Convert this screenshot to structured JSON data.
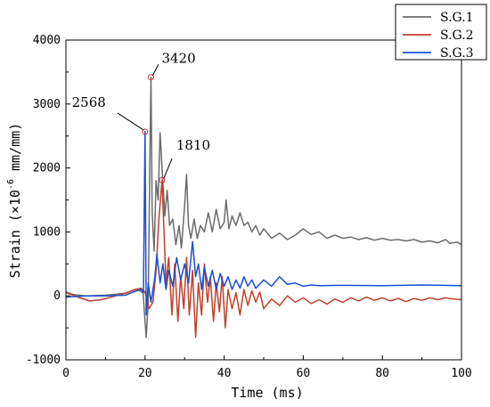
{
  "chart_data": {
    "type": "line",
    "xlabel": "Time (ms)",
    "ylabel_main": "Strain (×10",
    "ylabel_exp": "-6",
    "ylabel_unit": " mm/mm)",
    "xlim": [
      0,
      100
    ],
    "ylim": [
      -1000,
      4000
    ],
    "xticks": [
      "0",
      "20",
      "40",
      "60",
      "80",
      "100"
    ],
    "yticks": [
      "-1000",
      "0",
      "1000",
      "2000",
      "3000",
      "4000"
    ],
    "grid": false,
    "legend_position": "top-right",
    "series": [
      {
        "name": "S.G.1",
        "color": "#6b6b6b",
        "points": [
          [
            0,
            60
          ],
          [
            2,
            20
          ],
          [
            5,
            0
          ],
          [
            10,
            10
          ],
          [
            15,
            40
          ],
          [
            18,
            110
          ],
          [
            19.5,
            40
          ],
          [
            20.3,
            -650
          ],
          [
            20.8,
            -100
          ],
          [
            21.2,
            2000
          ],
          [
            21.5,
            3420
          ],
          [
            21.8,
            1300
          ],
          [
            22.3,
            700
          ],
          [
            22.8,
            1800
          ],
          [
            23.3,
            1500
          ],
          [
            23.8,
            2550
          ],
          [
            24.4,
            1900
          ],
          [
            25,
            1250
          ],
          [
            25.6,
            1650
          ],
          [
            26.2,
            1100
          ],
          [
            27,
            1200
          ],
          [
            27.8,
            800
          ],
          [
            28.6,
            1100
          ],
          [
            29.2,
            750
          ],
          [
            30,
            1400
          ],
          [
            30.5,
            1900
          ],
          [
            31,
            1100
          ],
          [
            31.6,
            900
          ],
          [
            32.4,
            1200
          ],
          [
            33.2,
            900
          ],
          [
            34,
            1100
          ],
          [
            35,
            1000
          ],
          [
            36,
            1300
          ],
          [
            37,
            1000
          ],
          [
            38,
            1350
          ],
          [
            39,
            1050
          ],
          [
            40,
            1150
          ],
          [
            40.5,
            1500
          ],
          [
            41.2,
            1050
          ],
          [
            42,
            1250
          ],
          [
            43,
            1100
          ],
          [
            44,
            1300
          ],
          [
            45,
            1100
          ],
          [
            46,
            1150
          ],
          [
            47,
            1000
          ],
          [
            48,
            1100
          ],
          [
            49,
            950
          ],
          [
            50,
            1050
          ],
          [
            52,
            900
          ],
          [
            54,
            980
          ],
          [
            56,
            880
          ],
          [
            58,
            950
          ],
          [
            60,
            1050
          ],
          [
            62,
            960
          ],
          [
            64,
            1000
          ],
          [
            66,
            900
          ],
          [
            68,
            950
          ],
          [
            70,
            900
          ],
          [
            72,
            920
          ],
          [
            74,
            880
          ],
          [
            76,
            910
          ],
          [
            78,
            870
          ],
          [
            80,
            900
          ],
          [
            82,
            870
          ],
          [
            84,
            880
          ],
          [
            86,
            860
          ],
          [
            88,
            880
          ],
          [
            90,
            840
          ],
          [
            92,
            860
          ],
          [
            94,
            830
          ],
          [
            96,
            880
          ],
          [
            97,
            820
          ],
          [
            99,
            840
          ],
          [
            100,
            800
          ]
        ]
      },
      {
        "name": "S.G.2",
        "color": "#c0402a",
        "points": [
          [
            0,
            50
          ],
          [
            3,
            -20
          ],
          [
            6,
            -80
          ],
          [
            9,
            -60
          ],
          [
            12,
            -10
          ],
          [
            15,
            40
          ],
          [
            17,
            90
          ],
          [
            19,
            120
          ],
          [
            20,
            60
          ],
          [
            21,
            -200
          ],
          [
            22,
            -100
          ],
          [
            22.8,
            400
          ],
          [
            23.5,
            1200
          ],
          [
            24.3,
            1810
          ],
          [
            24.8,
            1000
          ],
          [
            25.3,
            200
          ],
          [
            26,
            600
          ],
          [
            26.8,
            -300
          ],
          [
            27.5,
            500
          ],
          [
            28.3,
            -400
          ],
          [
            29,
            300
          ],
          [
            29.8,
            -200
          ],
          [
            30.5,
            600
          ],
          [
            31.2,
            -300
          ],
          [
            32,
            400
          ],
          [
            32.8,
            -650
          ],
          [
            33.5,
            200
          ],
          [
            34.3,
            -300
          ],
          [
            35,
            500
          ],
          [
            35.8,
            -100
          ],
          [
            36.5,
            300
          ],
          [
            37.3,
            -400
          ],
          [
            38,
            200
          ],
          [
            38.8,
            -250
          ],
          [
            39.5,
            300
          ],
          [
            40.3,
            -500
          ],
          [
            41,
            100
          ],
          [
            42,
            -200
          ],
          [
            43,
            50
          ],
          [
            44,
            -300
          ],
          [
            45,
            100
          ],
          [
            46,
            -150
          ],
          [
            47,
            80
          ],
          [
            48,
            -100
          ],
          [
            49,
            60
          ],
          [
            50,
            -200
          ],
          [
            52,
            -50
          ],
          [
            54,
            -150
          ],
          [
            56,
            0
          ],
          [
            58,
            -100
          ],
          [
            60,
            -30
          ],
          [
            62,
            -120
          ],
          [
            64,
            -60
          ],
          [
            66,
            -130
          ],
          [
            68,
            -50
          ],
          [
            70,
            -100
          ],
          [
            72,
            -30
          ],
          [
            74,
            -80
          ],
          [
            76,
            -20
          ],
          [
            78,
            -70
          ],
          [
            80,
            -30
          ],
          [
            82,
            -80
          ],
          [
            84,
            -40
          ],
          [
            86,
            -90
          ],
          [
            88,
            -40
          ],
          [
            90,
            -70
          ],
          [
            92,
            -30
          ],
          [
            94,
            -60
          ],
          [
            96,
            -30
          ],
          [
            98,
            -50
          ],
          [
            100,
            -60
          ]
        ]
      },
      {
        "name": "S.G.3",
        "color": "#1a4fd0",
        "points": [
          [
            0,
            -20
          ],
          [
            5,
            0
          ],
          [
            10,
            0
          ],
          [
            15,
            10
          ],
          [
            17,
            60
          ],
          [
            19,
            100
          ],
          [
            19.6,
            50
          ],
          [
            20,
            2568
          ],
          [
            20.3,
            -300
          ],
          [
            20.8,
            200
          ],
          [
            21.5,
            -100
          ],
          [
            22.5,
            300
          ],
          [
            23,
            650
          ],
          [
            23.8,
            200
          ],
          [
            24.5,
            500
          ],
          [
            25.3,
            100
          ],
          [
            26,
            400
          ],
          [
            27,
            150
          ],
          [
            28,
            600
          ],
          [
            29,
            250
          ],
          [
            30,
            500
          ],
          [
            31,
            200
          ],
          [
            32,
            850
          ],
          [
            32.8,
            300
          ],
          [
            33.5,
            500
          ],
          [
            34.3,
            100
          ],
          [
            35,
            450
          ],
          [
            36,
            150
          ],
          [
            37,
            400
          ],
          [
            38,
            100
          ],
          [
            39,
            350
          ],
          [
            40,
            150
          ],
          [
            41,
            300
          ],
          [
            42,
            100
          ],
          [
            43,
            250
          ],
          [
            44,
            120
          ],
          [
            45,
            300
          ],
          [
            46,
            150
          ],
          [
            47,
            250
          ],
          [
            48,
            120
          ],
          [
            50,
            250
          ],
          [
            52,
            150
          ],
          [
            54,
            300
          ],
          [
            56,
            180
          ],
          [
            58,
            200
          ],
          [
            60,
            150
          ],
          [
            62,
            170
          ],
          [
            64,
            160
          ],
          [
            70,
            165
          ],
          [
            80,
            160
          ],
          [
            90,
            170
          ],
          [
            95,
            165
          ],
          [
            100,
            160
          ]
        ]
      }
    ],
    "annotations": [
      {
        "text": "3420",
        "x": 21.5,
        "y": 3420
      },
      {
        "text": "2568",
        "x": 20,
        "y": 2568
      },
      {
        "text": "1810",
        "x": 24.3,
        "y": 1810
      }
    ]
  }
}
